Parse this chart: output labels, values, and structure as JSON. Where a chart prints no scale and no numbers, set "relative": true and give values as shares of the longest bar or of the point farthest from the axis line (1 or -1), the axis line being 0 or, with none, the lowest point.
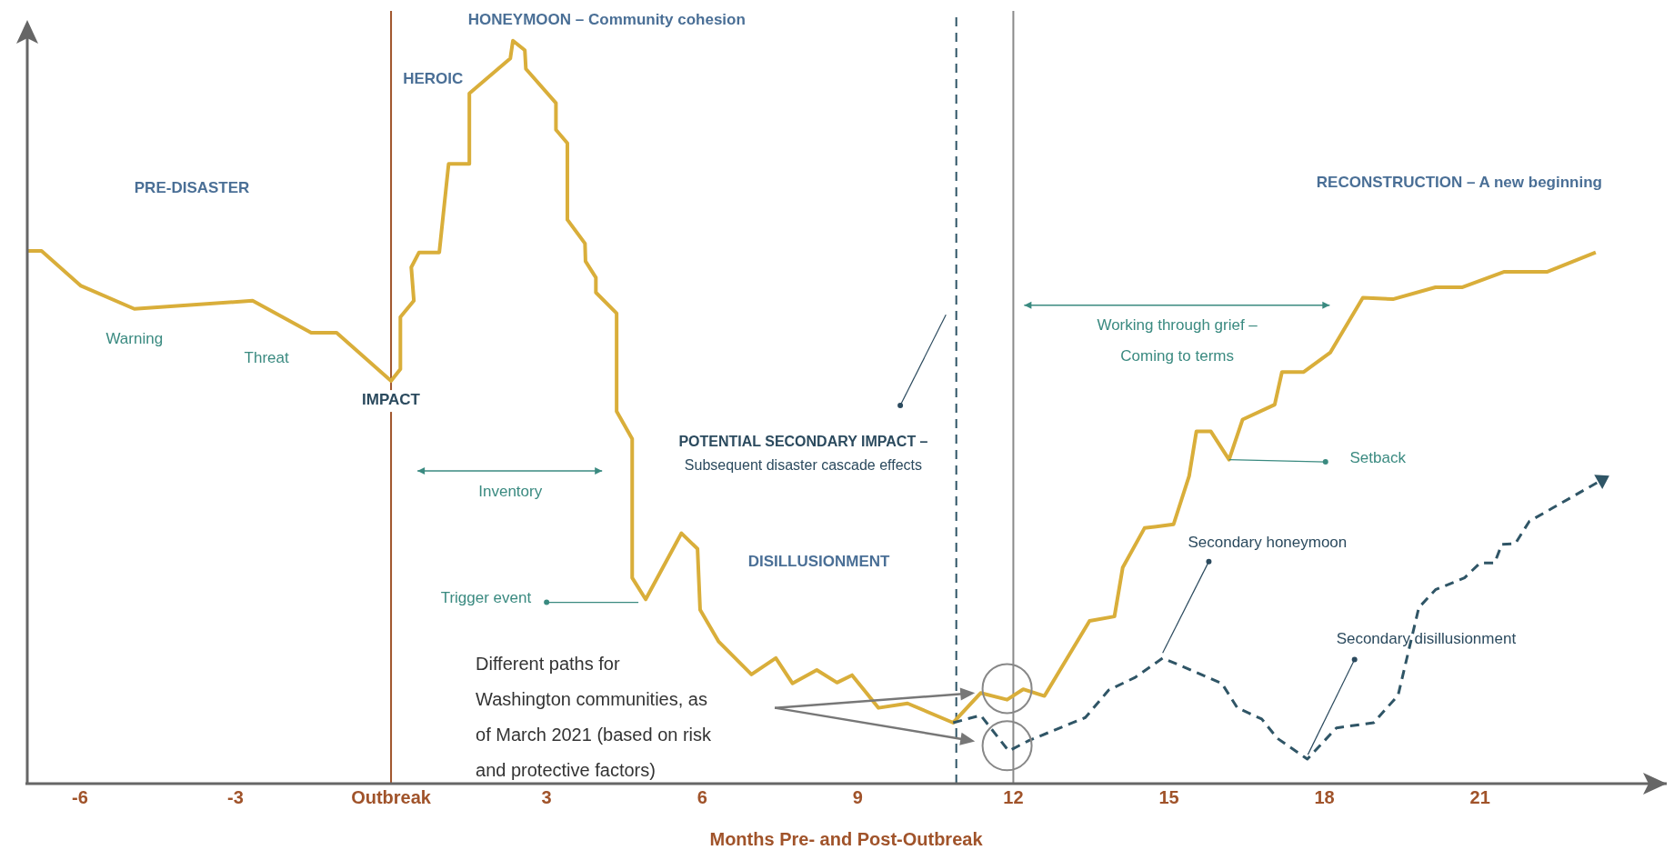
{
  "chart_data": {
    "type": "line",
    "relative": true,
    "xlabel": "Months Pre- and Post-Outbreak",
    "xlim": [
      -7.05,
      24.6
    ],
    "xticks": [
      -6,
      -3,
      {
        "value": 0,
        "label": "Outbreak"
      },
      3,
      6,
      9,
      12,
      15,
      18,
      21
    ],
    "ylim": [
      0,
      1.04
    ],
    "marker": "none",
    "series": [
      {
        "color": "#d9ae3a",
        "line_style": "solid",
        "x": [
          -7.02,
          -6.74,
          -5.98,
          -4.95,
          -2.67,
          -1.54,
          -1.05,
          0,
          0.18,
          0.18,
          0.44,
          0.39,
          0.54,
          0.93,
          1.11,
          1.51,
          1.51,
          2.3,
          2.35,
          2.58,
          2.6,
          3.18,
          3.18,
          3.4,
          3.4,
          3.74,
          3.75,
          3.95,
          3.95,
          4.35,
          4.35,
          4.65,
          4.65,
          4.91,
          5.6,
          5.91,
          5.96,
          6.32,
          6.95,
          7.42,
          7.74,
          8.21,
          8.6,
          8.89,
          9.4,
          9.96,
          10.84,
          11.37,
          11.88,
          12.19,
          12.6,
          13.47,
          13.95,
          14.11,
          14.53,
          15.09,
          15.39,
          15.53,
          15.81,
          16.16,
          16.42,
          17.04,
          17.18,
          17.6,
          18.11,
          18.74,
          19.32,
          20.14,
          20.65,
          21.47,
          22.3,
          23.23
        ],
        "values": [
          0.717,
          0.717,
          0.67,
          0.639,
          0.65,
          0.607,
          0.607,
          0.542,
          0.558,
          0.628,
          0.65,
          0.695,
          0.715,
          0.715,
          0.834,
          0.834,
          0.929,
          0.976,
          1,
          0.987,
          0.962,
          0.916,
          0.88,
          0.862,
          0.759,
          0.727,
          0.703,
          0.681,
          0.661,
          0.633,
          0.501,
          0.464,
          0.277,
          0.248,
          0.337,
          0.316,
          0.234,
          0.191,
          0.147,
          0.169,
          0.135,
          0.153,
          0.136,
          0.146,
          0.102,
          0.108,
          0.082,
          0.122,
          0.113,
          0.127,
          0.118,
          0.219,
          0.225,
          0.291,
          0.344,
          0.349,
          0.414,
          0.474,
          0.474,
          0.436,
          0.49,
          0.51,
          0.554,
          0.554,
          0.58,
          0.654,
          0.652,
          0.668,
          0.668,
          0.689,
          0.689,
          0.715
        ]
      },
      {
        "color": "#2f5566",
        "line_style": "dashed",
        "x": [
          10.84,
          11.37,
          11.91,
          12.3,
          13.39,
          13.84,
          14.35,
          14.88,
          16.02,
          16.32,
          16.79,
          17.09,
          17.67,
          18.23,
          18.95,
          19.42,
          19.82,
          20.14,
          20.7,
          21.0,
          21.28,
          21.42,
          21.68,
          21.95,
          22.4,
          23.28
        ],
        "values": [
          0.082,
          0.092,
          0.044,
          0.058,
          0.089,
          0.126,
          0.143,
          0.169,
          0.135,
          0.102,
          0.087,
          0.061,
          0.033,
          0.075,
          0.082,
          0.119,
          0.237,
          0.261,
          0.277,
          0.297,
          0.297,
          0.322,
          0.323,
          0.353,
          0.371,
          0.406
        ]
      }
    ],
    "ref_lines": [
      {
        "axis": "x",
        "value": 0,
        "color": "#a0532a",
        "line_style": "solid"
      },
      {
        "axis": "x",
        "value": 10.9,
        "color": "#2f5566",
        "line_style": "dashed"
      },
      {
        "axis": "x",
        "value": 12,
        "color": "#8a8a8a",
        "line_style": "solid"
      }
    ],
    "annotations": [
      "PRE-DISASTER",
      "Warning",
      "Threat",
      "IMPACT",
      "HEROIC",
      "HONEYMOON – Community cohesion",
      "Inventory",
      "Trigger event",
      "POTENTIAL SECONDARY IMPACT –",
      "Subsequent disaster cascade effects",
      "DISILLUSIONMENT",
      "Working through grief –",
      "Coming to terms",
      "RECONSTRUCTION – A new beginning",
      "Setback",
      "Secondary honeymoon",
      "Secondary disillusionment",
      "Different paths for\nWashington communities, as\nof March 2021 (based on risk\nand protective factors)"
    ]
  }
}
